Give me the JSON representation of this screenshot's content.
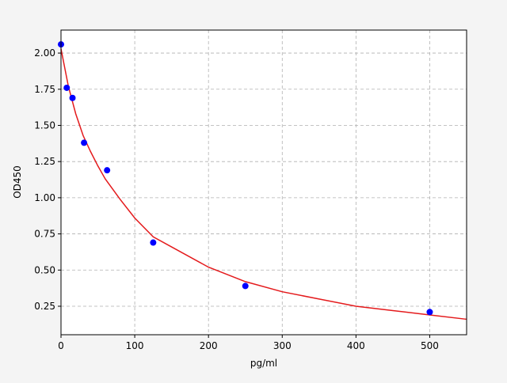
{
  "chart_data": {
    "type": "scatter",
    "xlabel": "pg/ml",
    "ylabel": "OD450",
    "x": [
      0,
      7.8,
      15.6,
      31.25,
      62.5,
      125,
      250,
      500
    ],
    "y": [
      2.06,
      1.76,
      1.69,
      1.38,
      1.19,
      0.69,
      0.39,
      0.21
    ],
    "color": "#0000ff",
    "fit": {
      "type": "line",
      "color": "#e41a1c",
      "x": [
        0,
        10,
        20,
        30,
        40,
        50,
        60,
        80,
        100,
        125,
        150,
        200,
        250,
        300,
        350,
        400,
        450,
        500,
        550
      ],
      "y": [
        2.03,
        1.77,
        1.58,
        1.43,
        1.32,
        1.22,
        1.13,
        0.99,
        0.86,
        0.73,
        0.66,
        0.52,
        0.42,
        0.35,
        0.3,
        0.25,
        0.22,
        0.19,
        0.16
      ]
    },
    "xlim": [
      0,
      550
    ],
    "ylim": [
      0.053,
      2.159
    ],
    "xticks": [
      0,
      100,
      200,
      300,
      400,
      500
    ],
    "yticks": [
      0.25,
      {
        "value": 0.5,
        "label": "0.50"
      },
      0.75,
      {
        "value": 1,
        "label": "1.00"
      },
      1.25,
      {
        "value": 1.5,
        "label": "1.50"
      },
      1.75,
      {
        "value": 2,
        "label": "2.00"
      }
    ],
    "grid": true
  }
}
